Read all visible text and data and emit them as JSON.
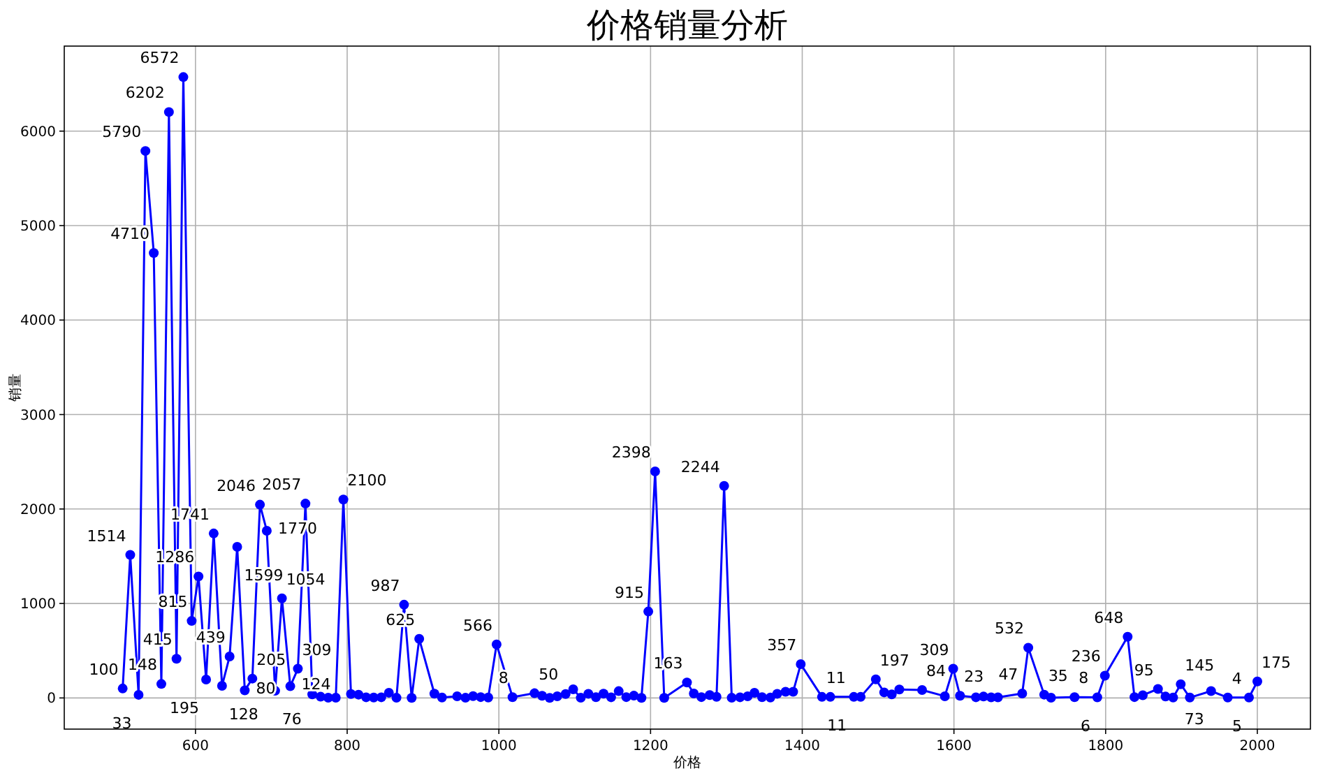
{
  "chart_data": {
    "type": "line",
    "title": "价格销量分析",
    "xlabel": "价格",
    "ylabel": "销量",
    "x": [
      504,
      514,
      525,
      534,
      545,
      555,
      565,
      575,
      584,
      595,
      604,
      614,
      624,
      635,
      645,
      655,
      665,
      675,
      685,
      694,
      705,
      714,
      725,
      735,
      745,
      754,
      765,
      775,
      785,
      795,
      805,
      815,
      825,
      835,
      845,
      855,
      865,
      875,
      885,
      895,
      915,
      925,
      945,
      956,
      966,
      976,
      986,
      997,
      1018,
      1047,
      1057,
      1067,
      1077,
      1088,
      1098,
      1108,
      1118,
      1128,
      1138,
      1148,
      1158,
      1168,
      1178,
      1188,
      1197,
      1206,
      1218,
      1248,
      1257,
      1267,
      1278,
      1287,
      1297,
      1307,
      1318,
      1328,
      1337,
      1347,
      1358,
      1367,
      1378,
      1388,
      1398,
      1426,
      1437,
      1468,
      1477,
      1497,
      1508,
      1518,
      1528,
      1558,
      1588,
      1599,
      1608,
      1629,
      1639,
      1649,
      1658,
      1690,
      1698,
      1719,
      1728,
      1759,
      1789,
      1799,
      1829,
      1838,
      1849,
      1869,
      1879,
      1889,
      1899,
      1911,
      1939,
      1961,
      1989,
      2000
    ],
    "series": [
      {
        "color": "#0000ff",
        "values": [
          100,
          1514,
          33,
          5790,
          4710,
          148,
          6202,
          415,
          6572,
          815,
          1286,
          195,
          1741,
          128,
          439,
          1599,
          80,
          205,
          2046,
          1770,
          76,
          1054,
          124,
          309,
          2057,
          38,
          13,
          3,
          3,
          2100,
          42,
          35,
          7,
          5,
          7,
          55,
          2,
          987,
          1,
          625,
          45,
          4,
          17,
          2,
          19,
          9,
          4,
          566,
          8,
          50,
          23,
          1,
          17,
          41,
          91,
          2,
          44,
          8,
          45,
          7,
          72,
          9,
          24,
          1,
          915,
          2398,
          1,
          163,
          47,
          9,
          30,
          12,
          2244,
          2,
          7,
          18,
          54,
          8,
          4,
          44,
          66,
          66,
          357,
          11,
          11,
          11,
          11,
          197,
          59,
          38,
          90,
          84,
          18,
          309,
          23,
          7,
          15,
          6,
          6,
          47,
          532,
          35,
          3,
          8,
          6,
          236,
          648,
          9,
          29,
          95,
          15,
          5,
          145,
          4,
          73,
          4,
          5,
          175
        ]
      }
    ],
    "xlim": [
      427,
      2070
    ],
    "ylim": [
      -330,
      6900
    ],
    "xticks": [
      600,
      800,
      1000,
      1200,
      1400,
      1600,
      1800,
      2000
    ],
    "yticks": [
      0,
      1000,
      2000,
      3000,
      4000,
      5000,
      6000
    ],
    "value_labels": [
      "100",
      "1514",
      "33",
      "5790",
      "4710",
      "148",
      "6202",
      "415",
      "6572",
      "815",
      "1286",
      "195",
      "1741",
      "128",
      "439",
      "1599",
      "80",
      "205",
      "2046",
      "1770",
      "76",
      "1054",
      "124",
      "309",
      "2057",
      null,
      null,
      null,
      null,
      "2100",
      null,
      null,
      null,
      null,
      null,
      null,
      null,
      "987",
      null,
      "625",
      null,
      null,
      null,
      null,
      null,
      null,
      null,
      "566",
      "8",
      "50",
      null,
      null,
      null,
      null,
      null,
      null,
      null,
      null,
      null,
      null,
      null,
      null,
      null,
      null,
      "915",
      "2398",
      null,
      "163",
      null,
      null,
      null,
      null,
      "2244",
      null,
      null,
      null,
      null,
      null,
      null,
      null,
      null,
      null,
      "357",
      "11",
      null,
      "11",
      null,
      "197",
      null,
      null,
      null,
      "84",
      null,
      "309",
      "23",
      null,
      null,
      null,
      null,
      "47",
      "532",
      "35",
      null,
      "8",
      "6",
      "236",
      "648",
      null,
      null,
      "95",
      null,
      null,
      "145",
      null,
      "73",
      "4",
      "5",
      "175"
    ],
    "grid": true,
    "marker": "circle",
    "line_style": "solid"
  }
}
